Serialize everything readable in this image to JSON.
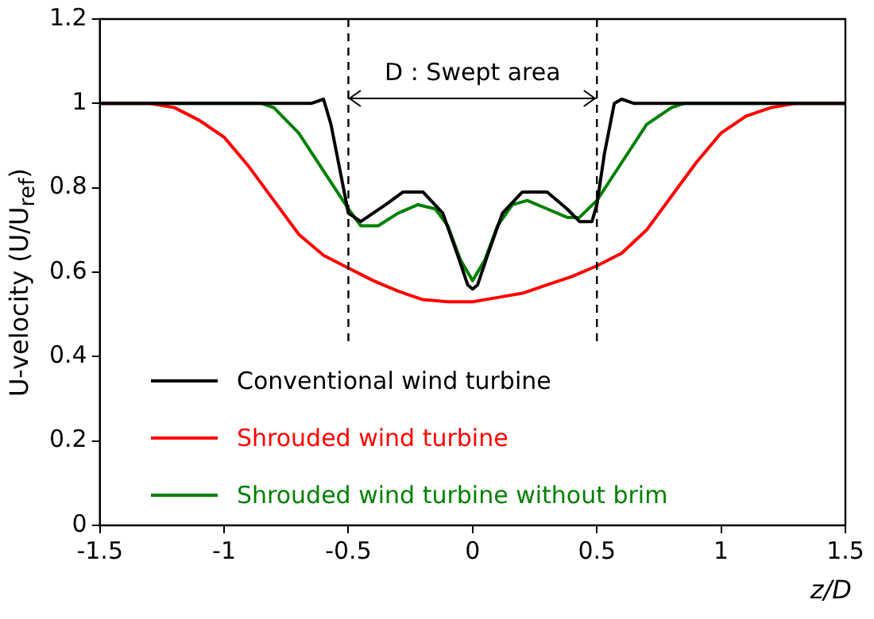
{
  "chart_data": {
    "type": "line",
    "xlabel": "z/D",
    "ylabel": "U-velocity (U/U$_{ref}$)",
    "xlim": [
      -1.5,
      1.5
    ],
    "xticks": [
      -1.5,
      -1,
      -0.5,
      0,
      0.5,
      1,
      1.5
    ],
    "ylim": [
      0,
      1.2
    ],
    "yticks": [
      0,
      0.2,
      0.4,
      0.6,
      0.8,
      1,
      1.2
    ],
    "grid": false,
    "legend": "bottom left",
    "marker": "none",
    "line_style": "solid",
    "annotations": [
      "D : Swept area"
    ],
    "ref_lines": [
      {
        "axis": "x",
        "value": -0.5,
        "color": "#000000",
        "line_style": "dashed"
      },
      {
        "axis": "x",
        "value": 0.5,
        "color": "#000000",
        "line_style": "dashed"
      }
    ],
    "series": [
      {
        "name": "Conventional wind turbine",
        "color": "#000000",
        "x": [
          -1.5,
          -0.65,
          -0.6,
          -0.57,
          -0.52,
          -0.5,
          -0.45,
          -0.35,
          -0.28,
          -0.2,
          -0.12,
          -0.06,
          -0.02,
          0,
          0.02,
          0.06,
          0.12,
          0.2,
          0.3,
          0.38,
          0.43,
          0.48,
          0.5,
          0.53,
          0.57,
          0.6,
          0.65,
          1.5
        ],
        "values": [
          1,
          1,
          1.01,
          0.95,
          0.8,
          0.74,
          0.72,
          0.76,
          0.79,
          0.79,
          0.74,
          0.64,
          0.57,
          0.56,
          0.57,
          0.64,
          0.74,
          0.79,
          0.79,
          0.75,
          0.72,
          0.72,
          0.76,
          0.88,
          1,
          1.01,
          1,
          1
        ]
      },
      {
        "name": "Shrouded wind turbine",
        "color": "#ff0000",
        "x": [
          -1.5,
          -1.3,
          -1.2,
          -1.1,
          -1,
          -0.9,
          -0.8,
          -0.7,
          -0.6,
          -0.5,
          -0.4,
          -0.3,
          -0.2,
          -0.1,
          0,
          0.1,
          0.2,
          0.3,
          0.4,
          0.5,
          0.6,
          0.7,
          0.8,
          0.9,
          1,
          1.1,
          1.2,
          1.3,
          1.5
        ],
        "values": [
          1,
          1,
          0.99,
          0.96,
          0.92,
          0.85,
          0.77,
          0.69,
          0.64,
          0.61,
          0.58,
          0.555,
          0.535,
          0.53,
          0.53,
          0.54,
          0.55,
          0.57,
          0.59,
          0.615,
          0.645,
          0.7,
          0.78,
          0.86,
          0.93,
          0.97,
          0.99,
          1,
          1
        ]
      },
      {
        "name": "Shrouded wind turbine without brim",
        "color": "#008000",
        "x": [
          -1.5,
          -0.85,
          -0.8,
          -0.7,
          -0.6,
          -0.5,
          -0.45,
          -0.38,
          -0.3,
          -0.22,
          -0.15,
          -0.1,
          -0.05,
          0,
          0.05,
          0.1,
          0.16,
          0.22,
          0.3,
          0.38,
          0.43,
          0.5,
          0.6,
          0.7,
          0.8,
          0.85,
          1.5
        ],
        "values": [
          1,
          1,
          0.99,
          0.93,
          0.84,
          0.75,
          0.71,
          0.71,
          0.74,
          0.76,
          0.75,
          0.71,
          0.63,
          0.58,
          0.63,
          0.71,
          0.76,
          0.77,
          0.75,
          0.73,
          0.73,
          0.77,
          0.86,
          0.95,
          0.99,
          1,
          1
        ]
      }
    ]
  }
}
